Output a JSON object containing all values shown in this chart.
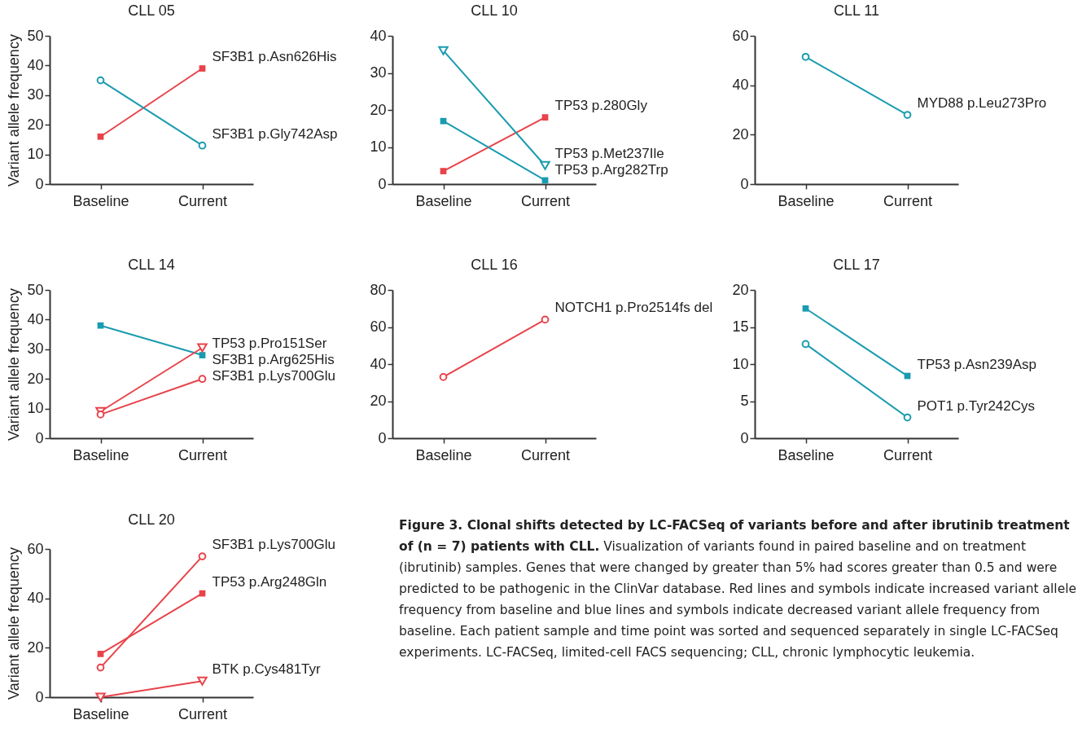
{
  "chart_data": [
    {
      "type": "line",
      "title": "CLL 05",
      "ylabel": "Variant allele frequency",
      "categories": [
        "Baseline",
        "Current"
      ],
      "ylim": [
        0,
        50
      ],
      "yticks": [
        0,
        10,
        20,
        30,
        40,
        50
      ],
      "series": [
        {
          "name": "SF3B1 p.Asn626His",
          "color": "#e8434a",
          "marker": "square",
          "values": [
            16,
            39
          ]
        },
        {
          "name": "SF3B1 p.Gly742Asp",
          "color": "#1a9bb0",
          "marker": "circle",
          "values": [
            35,
            13
          ]
        }
      ]
    },
    {
      "type": "line",
      "title": "CLL 10",
      "categories": [
        "Baseline",
        "Current"
      ],
      "ylim": [
        0,
        40
      ],
      "yticks": [
        0,
        10,
        20,
        30,
        40
      ],
      "series": [
        {
          "name": "TP53 p.280Gly",
          "color": "#e8434a",
          "marker": "square",
          "values": [
            3.5,
            18
          ]
        },
        {
          "name": "TP53 p.Met237Ile",
          "color": "#1a9bb0",
          "marker": "triangle",
          "values": [
            36,
            5
          ]
        },
        {
          "name": "TP53 p.Arg282Trp",
          "color": "#1a9bb0",
          "marker": "square",
          "values": [
            17,
            1
          ]
        }
      ]
    },
    {
      "type": "line",
      "title": "CLL 11",
      "categories": [
        "Baseline",
        "Current"
      ],
      "ylim": [
        0,
        60
      ],
      "yticks": [
        0,
        20,
        40,
        60
      ],
      "series": [
        {
          "name": "MYD88 p.Leu273Pro",
          "color": "#1a9bb0",
          "marker": "circle",
          "values": [
            51.5,
            28
          ]
        }
      ]
    },
    {
      "type": "line",
      "title": "CLL 14",
      "ylabel": "Variant allele frequency",
      "categories": [
        "Baseline",
        "Current"
      ],
      "ylim": [
        0,
        50
      ],
      "yticks": [
        0,
        10,
        20,
        30,
        40,
        50
      ],
      "series": [
        {
          "name": "TP53 p.Pro151Ser",
          "color": "#1a9bb0",
          "marker": "square",
          "values": [
            38,
            28
          ]
        },
        {
          "name": "SF3B1 p.Arg625His",
          "color": "#e8434a",
          "marker": "triangle",
          "values": [
            9,
            30.5
          ]
        },
        {
          "name": "SF3B1 p.Lys700Glu",
          "color": "#e8434a",
          "marker": "circle",
          "values": [
            8,
            20
          ]
        }
      ]
    },
    {
      "type": "line",
      "title": "CLL 16",
      "categories": [
        "Baseline",
        "Current"
      ],
      "ylim": [
        0,
        80
      ],
      "yticks": [
        0,
        20,
        40,
        60,
        80
      ],
      "series": [
        {
          "name": "NOTCH1 p.Pro2514fs del",
          "color": "#e8434a",
          "marker": "circle",
          "values": [
            33,
            64
          ]
        }
      ]
    },
    {
      "type": "line",
      "title": "CLL 17",
      "categories": [
        "Baseline",
        "Current"
      ],
      "ylim": [
        0,
        20
      ],
      "yticks": [
        0,
        5,
        10,
        15,
        20
      ],
      "series": [
        {
          "name": "TP53 p.Asn239Asp",
          "color": "#1a9bb0",
          "marker": "square",
          "values": [
            17.5,
            8.4
          ]
        },
        {
          "name": "POT1 p.Tyr242Cys",
          "color": "#1a9bb0",
          "marker": "circle",
          "values": [
            12.7,
            2.8
          ]
        }
      ]
    },
    {
      "type": "line",
      "title": "CLL 20",
      "ylabel": "Variant allele frequency",
      "categories": [
        "Baseline",
        "Current"
      ],
      "ylim": [
        0,
        60
      ],
      "yticks": [
        0,
        20,
        40,
        60
      ],
      "series": [
        {
          "name": "SF3B1 p.Lys700Glu",
          "color": "#e8434a",
          "marker": "circle",
          "values": [
            12,
            57
          ]
        },
        {
          "name": "TP53 p.Arg248Gln",
          "color": "#e8434a",
          "marker": "square",
          "values": [
            17.5,
            42
          ]
        },
        {
          "name": "BTK p.Cys481Tyr",
          "color": "#e8434a",
          "marker": "triangle",
          "values": [
            0,
            6.5
          ]
        }
      ],
      "annotations": [
        "Figure 3. Clonal shifts detected by LC-FACSeq of variants before and after ibrutinib treatment of (n = 7) patients with CLL.",
        "Visualization of variants found in paired baseline and on treatment (ibrutinib) samples. Genes that were changed by greater than 5% had scores greater than 0.5 and were predicted to be pathogenic in the ClinVar database. Red lines and symbols indicate increased variant allele frequency from baseline and blue lines and symbols indicate decreased variant allele frequency from baseline. Each patient sample and time point was sorted and sequenced separately in single LC-FACSeq experiments. LC-FACSeq, limited-cell FACS sequencing; CLL, chronic lymphocytic leukemia."
      ]
    }
  ]
}
